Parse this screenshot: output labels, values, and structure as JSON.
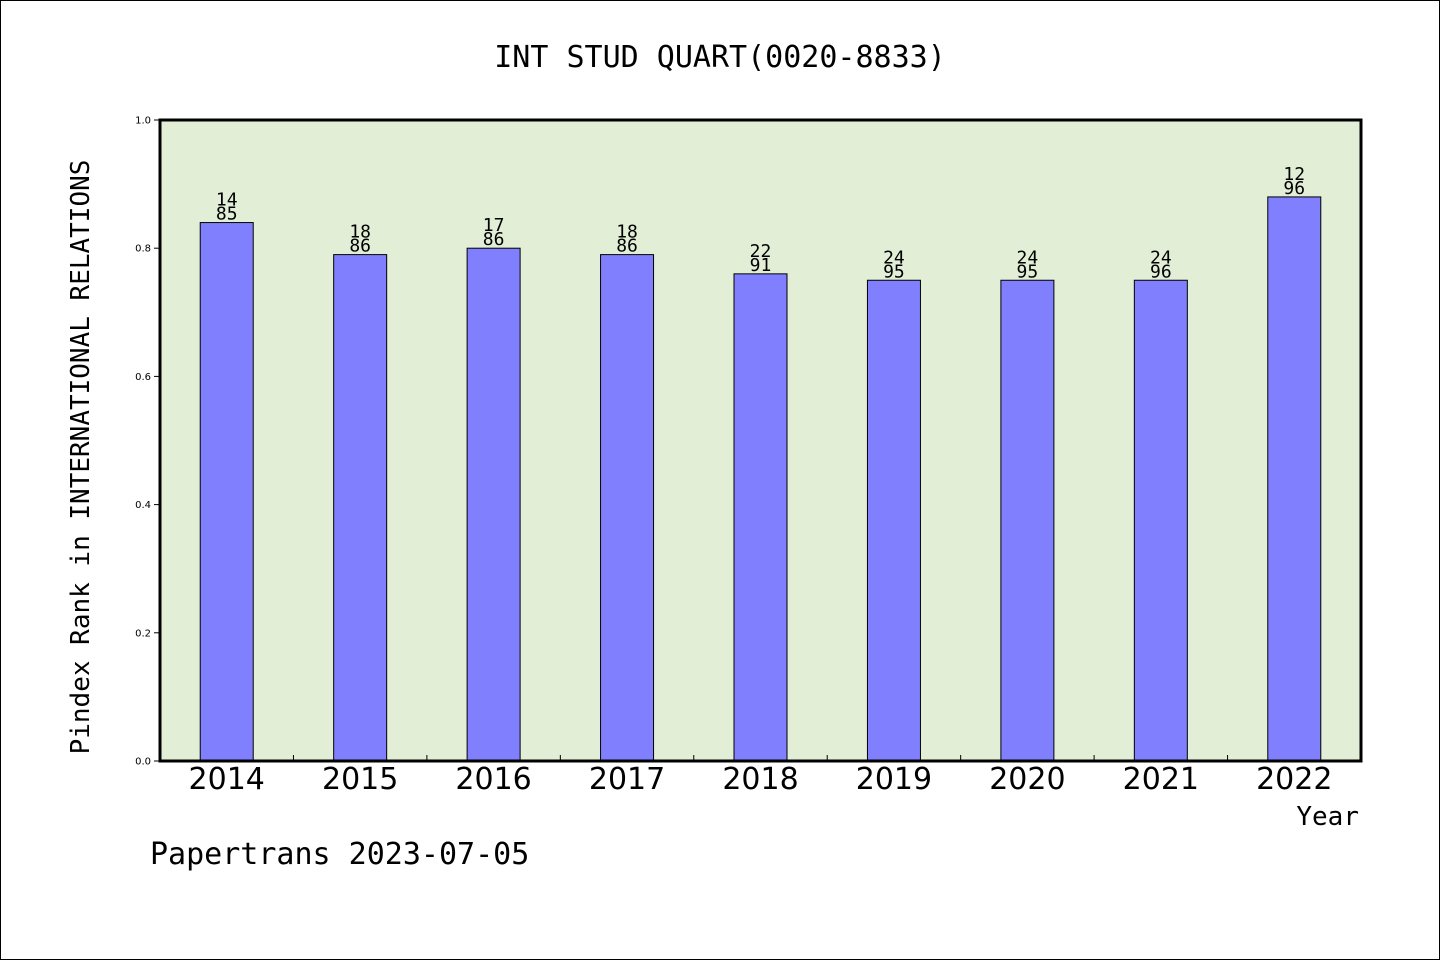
{
  "chart_data": {
    "type": "bar",
    "title": "INT STUD QUART(0020-8833)",
    "xlabel": "Year",
    "ylabel": "Pindex Rank in INTERNATIONAL RELATIONS",
    "categories": [
      "2014",
      "2015",
      "2016",
      "2017",
      "2018",
      "2019",
      "2020",
      "2021",
      "2022"
    ],
    "values": [
      0.84,
      0.79,
      0.8,
      0.79,
      0.76,
      0.75,
      0.75,
      0.75,
      0.88
    ],
    "bar_labels": [
      [
        "14",
        "85"
      ],
      [
        "18",
        "86"
      ],
      [
        "17",
        "86"
      ],
      [
        "18",
        "86"
      ],
      [
        "22",
        "91"
      ],
      [
        "24",
        "95"
      ],
      [
        "24",
        "95"
      ],
      [
        "24",
        "96"
      ],
      [
        "12",
        "96"
      ]
    ],
    "ylim": [
      0,
      1.0
    ],
    "yticks": [
      "0.0",
      "0.2",
      "0.4",
      "0.6",
      "0.8",
      "1.0"
    ],
    "grid": false,
    "colors": {
      "bar": "#8080ff",
      "plot_background": "#e2efd6",
      "axis": "#000000"
    }
  },
  "footer": "Papertrans 2023-07-05"
}
